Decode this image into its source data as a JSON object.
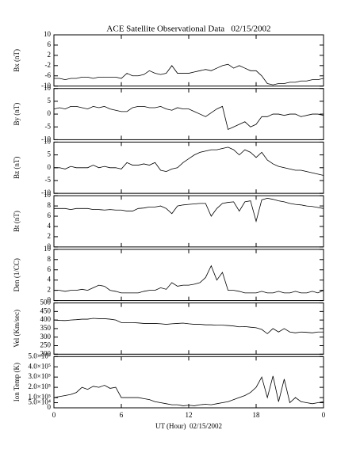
{
  "chart_data": [
    {
      "type": "line",
      "title": "ACE Satellite Observational Data   02/15/2002",
      "ylabel": "Bx (nT)",
      "color": "#000000",
      "x": [
        0,
        0.5,
        1,
        1.5,
        2,
        2.5,
        3,
        3.5,
        4,
        4.5,
        5,
        5.5,
        6,
        6.5,
        7,
        7.5,
        8,
        8.5,
        9,
        9.5,
        10,
        10.5,
        11,
        11.5,
        12,
        12.5,
        13,
        13.5,
        14,
        14.5,
        15,
        15.5,
        16,
        16.5,
        17,
        17.5,
        18,
        18.5,
        19,
        19.5,
        20,
        20.5,
        21,
        21.5,
        22,
        22.5,
        23,
        23.5,
        24
      ],
      "values": [
        -7,
        -7,
        -7.5,
        -7,
        -7,
        -6.5,
        -6.5,
        -7,
        -6.5,
        -6.5,
        -6.5,
        -6.5,
        -7,
        -5,
        -6,
        -6,
        -5.5,
        -4,
        -5,
        -5.5,
        -5,
        -2,
        -5,
        -5,
        -5,
        -4.5,
        -4,
        -3.5,
        -4,
        -3,
        -2,
        -1.5,
        -3,
        -2,
        -3,
        -4,
        -4,
        -6,
        -9,
        -9.5,
        -9,
        -9,
        -8.5,
        -8.5,
        -8,
        -8,
        -7.5,
        -7.5,
        -7
      ],
      "xlim": [
        0,
        24
      ],
      "ylim": [
        -10,
        10
      ],
      "yticks": [
        -10,
        -6,
        -2,
        2,
        6,
        10
      ]
    },
    {
      "type": "line",
      "ylabel": "By (nT)",
      "color": "#000000",
      "x": [
        0,
        0.5,
        1,
        1.5,
        2,
        2.5,
        3,
        3.5,
        4,
        4.5,
        5,
        5.5,
        6,
        6.5,
        7,
        7.5,
        8,
        8.5,
        9,
        9.5,
        10,
        10.5,
        11,
        11.5,
        12,
        12.5,
        13,
        13.5,
        14,
        14.5,
        15,
        15.5,
        16,
        16.5,
        17,
        17.5,
        18,
        18.5,
        19,
        19.5,
        20,
        20.5,
        21,
        21.5,
        22,
        22.5,
        23,
        23.5,
        24
      ],
      "values": [
        2,
        2.5,
        2,
        3,
        3,
        2.5,
        2,
        3,
        2.5,
        3,
        2,
        1.5,
        1,
        1,
        2.5,
        3,
        3,
        2.5,
        2.5,
        3,
        2,
        1.5,
        2.5,
        2,
        2,
        1,
        0,
        -1,
        0.5,
        2,
        3,
        -6,
        -5,
        -4,
        -3,
        -5,
        -4,
        -1,
        -1,
        0,
        0,
        -0.5,
        0,
        0,
        -1,
        -0.5,
        0,
        0,
        -0.5
      ],
      "xlim": [
        0,
        24
      ],
      "ylim": [
        -10,
        10
      ],
      "yticks": [
        -10,
        -5,
        0,
        5,
        10
      ]
    },
    {
      "type": "line",
      "ylabel": "Bz (nT)",
      "color": "#000000",
      "x": [
        0,
        0.5,
        1,
        1.5,
        2,
        2.5,
        3,
        3.5,
        4,
        4.5,
        5,
        5.5,
        6,
        6.5,
        7,
        7.5,
        8,
        8.5,
        9,
        9.5,
        10,
        10.5,
        11,
        11.5,
        12,
        12.5,
        13,
        13.5,
        14,
        14.5,
        15,
        15.5,
        16,
        16.5,
        17,
        17.5,
        18,
        18.5,
        19,
        19.5,
        20,
        20.5,
        21,
        21.5,
        22,
        22.5,
        23,
        23.5,
        24
      ],
      "values": [
        0,
        0,
        -0.5,
        0.5,
        0,
        0,
        0,
        1,
        0,
        0.5,
        0,
        0,
        -0.5,
        2,
        1,
        1,
        1.5,
        1,
        2,
        -1,
        -1.5,
        -0.5,
        0,
        2,
        3.5,
        5,
        6,
        6.5,
        7,
        7,
        7.5,
        8,
        7,
        5,
        7,
        6,
        4,
        6,
        3,
        1.5,
        0.5,
        0,
        -0.5,
        -1,
        -1,
        -1.5,
        -2,
        -2.5,
        -3
      ],
      "xlim": [
        0,
        24
      ],
      "ylim": [
        -10,
        10
      ],
      "yticks": [
        -10,
        -5,
        0,
        5,
        10
      ]
    },
    {
      "type": "line",
      "ylabel": "Bt (nT)",
      "color": "#000000",
      "x": [
        0,
        0.5,
        1,
        1.5,
        2,
        2.5,
        3,
        3.5,
        4,
        4.5,
        5,
        5.5,
        6,
        6.5,
        7,
        7.5,
        8,
        8.5,
        9,
        9.5,
        10,
        10.5,
        11,
        11.5,
        12,
        12.5,
        13,
        13.5,
        14,
        14.5,
        15,
        15.5,
        16,
        16.5,
        17,
        17.5,
        18,
        18.5,
        19,
        19.5,
        20,
        20.5,
        21,
        21.5,
        22,
        22.5,
        23,
        23.5,
        24
      ],
      "values": [
        7.5,
        7.5,
        7.5,
        7.3,
        7.5,
        7.5,
        7.5,
        7.3,
        7.3,
        7.2,
        7.3,
        7.2,
        7.2,
        7,
        7,
        7.5,
        7.6,
        7.8,
        7.8,
        8,
        7.5,
        6.5,
        8,
        8.2,
        8.3,
        8.4,
        8.5,
        8.5,
        6,
        7.5,
        8.5,
        8.7,
        8.8,
        7,
        8.8,
        9,
        5,
        9.2,
        9.5,
        9.3,
        9,
        8.8,
        8.5,
        8.3,
        8.2,
        8,
        7.9,
        7.7,
        7.5
      ],
      "xlim": [
        0,
        24
      ],
      "ylim": [
        0,
        10
      ],
      "yticks": [
        0,
        2,
        4,
        6,
        8,
        10
      ]
    },
    {
      "type": "line",
      "ylabel": "Den (1/CC)",
      "color": "#000000",
      "x": [
        0,
        0.5,
        1,
        1.5,
        2,
        2.5,
        3,
        3.5,
        4,
        4.5,
        5,
        5.5,
        6,
        6.5,
        7,
        7.5,
        8,
        8.5,
        9,
        9.5,
        10,
        10.5,
        11,
        11.5,
        12,
        12.5,
        13,
        13.5,
        14,
        14.5,
        15,
        15.5,
        16,
        16.5,
        17,
        17.5,
        18,
        18.5,
        19,
        19.5,
        20,
        20.5,
        21,
        21.5,
        22,
        22.5,
        23,
        23.5,
        24
      ],
      "values": [
        2,
        2,
        1.8,
        2,
        2,
        2.2,
        2,
        2.5,
        3,
        2.8,
        2,
        1.8,
        1.5,
        1.5,
        1.5,
        1.5,
        1.8,
        2,
        2,
        2.5,
        2.2,
        3.5,
        2.8,
        3,
        3,
        3.2,
        3.5,
        4.5,
        6.8,
        4,
        5.5,
        2,
        2,
        1.8,
        1.5,
        1.5,
        1.5,
        1.8,
        1.5,
        1.5,
        1.8,
        1.5,
        1.5,
        1.8,
        1.5,
        1.5,
        1.8,
        1.5,
        2
      ],
      "xlim": [
        0,
        24
      ],
      "ylim": [
        0,
        10
      ],
      "yticks": [
        0,
        2,
        4,
        6,
        8,
        10
      ]
    },
    {
      "type": "line",
      "ylabel": "Vel (Km/sec)",
      "color": "#000000",
      "x": [
        0,
        0.5,
        1,
        1.5,
        2,
        2.5,
        3,
        3.5,
        4,
        4.5,
        5,
        5.5,
        6,
        6.5,
        7,
        7.5,
        8,
        8.5,
        9,
        9.5,
        10,
        10.5,
        11,
        11.5,
        12,
        12.5,
        13,
        13.5,
        14,
        14.5,
        15,
        15.5,
        16,
        16.5,
        17,
        17.5,
        18,
        18.5,
        19,
        19.5,
        20,
        20.5,
        21,
        21.5,
        22,
        22.5,
        23,
        23.5,
        24
      ],
      "values": [
        400,
        398,
        397,
        400,
        402,
        405,
        405,
        410,
        408,
        408,
        405,
        400,
        385,
        385,
        385,
        383,
        380,
        380,
        380,
        378,
        375,
        378,
        380,
        382,
        378,
        375,
        375,
        372,
        372,
        370,
        370,
        368,
        365,
        360,
        362,
        358,
        355,
        345,
        320,
        350,
        330,
        350,
        330,
        325,
        330,
        328,
        325,
        330,
        330
      ],
      "xlim": [
        0,
        24
      ],
      "ylim": [
        200,
        500
      ],
      "yticks": [
        200,
        250,
        300,
        350,
        400,
        450,
        500
      ]
    },
    {
      "type": "line",
      "ylabel": "Ion Temp (K)",
      "xlabel": "UT (Hour)  02/15/2002",
      "color": "#000000",
      "x": [
        0,
        0.5,
        1,
        1.5,
        2,
        2.5,
        3,
        3.5,
        4,
        4.5,
        5,
        5.5,
        6,
        6.5,
        7,
        7.5,
        8,
        8.5,
        9,
        9.5,
        10,
        10.5,
        11,
        11.5,
        12,
        12.5,
        13,
        13.5,
        14,
        14.5,
        15,
        15.5,
        16,
        16.5,
        17,
        17.5,
        18,
        18.5,
        19,
        19.5,
        20,
        20.5,
        21,
        21.5,
        22,
        22.5,
        23,
        23.5,
        24
      ],
      "values": [
        100000,
        110000,
        120000,
        130000,
        150000,
        200000,
        180000,
        210000,
        200000,
        220000,
        190000,
        200000,
        100000,
        100000,
        100000,
        100000,
        90000,
        80000,
        60000,
        50000,
        40000,
        30000,
        30000,
        20000,
        25000,
        20000,
        30000,
        35000,
        30000,
        40000,
        50000,
        60000,
        80000,
        100000,
        120000,
        150000,
        200000,
        300000,
        100000,
        310000,
        60000,
        280000,
        50000,
        100000,
        60000,
        50000,
        40000,
        50000,
        60000
      ],
      "xlim": [
        0,
        24
      ],
      "ylim": [
        0,
        500000
      ],
      "yticks": [
        0,
        {
          "value": 50000,
          "label": "5.0×10⁴"
        },
        {
          "value": 100000,
          "label": "1.0×10⁵"
        },
        {
          "value": 200000,
          "label": "2.0×10⁵"
        },
        {
          "value": 300000,
          "label": "3.0×10⁵"
        },
        {
          "value": 400000,
          "label": "4.0×10⁵"
        },
        {
          "value": 500000,
          "label": "5.0×10⁵"
        }
      ],
      "xticks": [
        0,
        6,
        12,
        18,
        {
          "value": 24,
          "label": "0"
        }
      ]
    }
  ]
}
